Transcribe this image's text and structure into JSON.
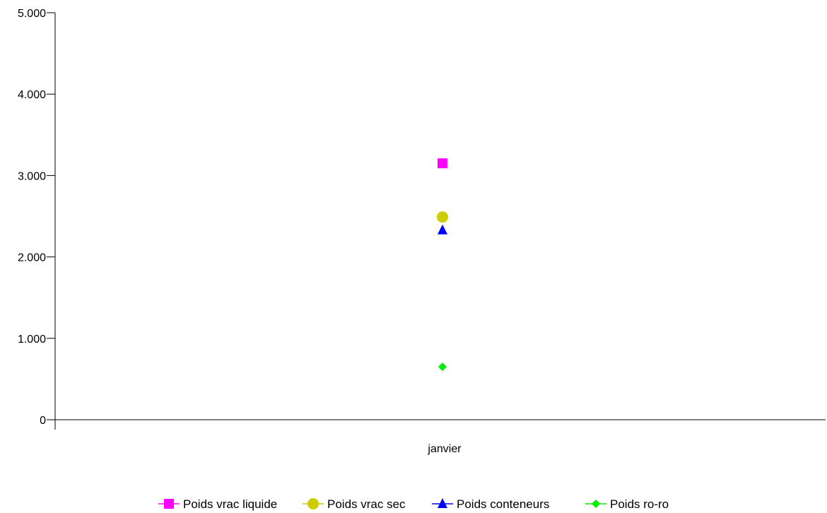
{
  "chart_data": {
    "type": "line",
    "categories": [
      "janvier"
    ],
    "ylim": [
      0,
      5000
    ],
    "yticks": [
      0,
      1000,
      2000,
      3000,
      4000,
      5000
    ],
    "ytick_labels": [
      "0",
      "1.000",
      "2.000",
      "3.000",
      "4.000",
      "5.000"
    ],
    "grid": false,
    "legend_position": "bottom",
    "series": [
      {
        "name": "Poids vrac liquide",
        "values": [
          3150
        ],
        "color": "#ff00ff",
        "marker": "square"
      },
      {
        "name": "Poids vrac sec",
        "values": [
          2490
        ],
        "color": "#cccc00",
        "marker": "circle"
      },
      {
        "name": "Poids conteneurs",
        "values": [
          2330
        ],
        "color": "#0000ff",
        "marker": "triangle"
      },
      {
        "name": "Poids ro-ro",
        "values": [
          650
        ],
        "color": "#00ee00",
        "marker": "diamond"
      }
    ]
  }
}
